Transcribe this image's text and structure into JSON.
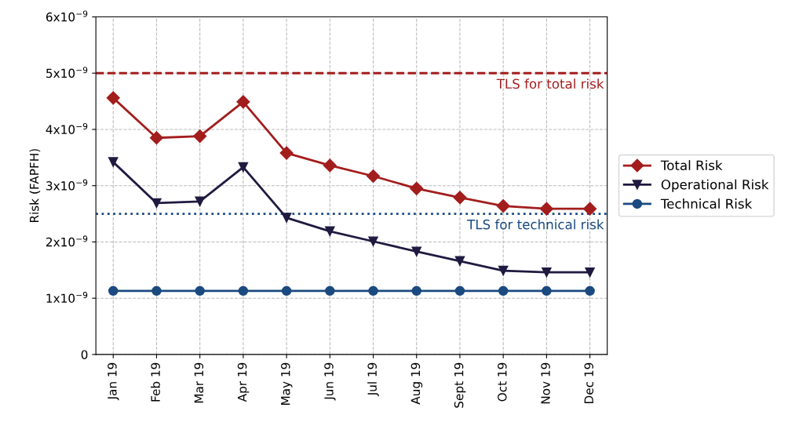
{
  "chart_data": {
    "type": "line",
    "ylabel": "Risk (FAPFH)",
    "categories": [
      "Jan 19",
      "Feb 19",
      "Mar 19",
      "Apr 19",
      "May 19",
      "Jun 19",
      "Jul 19",
      "Aug 19",
      "Sept 19",
      "Oct 19",
      "Nov 19",
      "Dec 19"
    ],
    "series": [
      {
        "name": "Total Risk",
        "color": "#a31d1d",
        "marker": "diamond",
        "values": [
          4.56e-09,
          3.85e-09,
          3.88e-09,
          4.49e-09,
          3.58e-09,
          3.36e-09,
          3.17e-09,
          2.95e-09,
          2.79e-09,
          2.64e-09,
          2.59e-09,
          2.59e-09
        ]
      },
      {
        "name": "Operational Risk",
        "color": "#1f1a40",
        "marker": "triangle",
        "values": [
          3.42e-09,
          2.69e-09,
          2.72e-09,
          3.33e-09,
          2.43e-09,
          2.19e-09,
          2.01e-09,
          1.83e-09,
          1.66e-09,
          1.49e-09,
          1.46e-09,
          1.46e-09
        ]
      },
      {
        "name": "Technical Risk",
        "color": "#1a4a80",
        "marker": "circle",
        "values": [
          1.13e-09,
          1.13e-09,
          1.13e-09,
          1.13e-09,
          1.13e-09,
          1.13e-09,
          1.13e-09,
          1.13e-09,
          1.13e-09,
          1.13e-09,
          1.13e-09,
          1.13e-09
        ]
      }
    ],
    "ylim": [
      0,
      6e-09
    ],
    "yticks": [
      0,
      {
        "value": 1e-09,
        "label": "1x10$^{−9}$"
      },
      {
        "value": 2e-09,
        "label": "2x10$^{−9}$"
      },
      {
        "value": 3e-09,
        "label": "3x10$^{−9}$"
      },
      {
        "value": 4e-09,
        "label": "4x10$^{−9}$"
      },
      {
        "value": 5e-09,
        "label": "5x10$^{−9}$"
      },
      {
        "value": 6e-09,
        "label": "6x10$^{−9}$"
      }
    ],
    "ref_lines": [
      {
        "axis": "y",
        "value": 5e-09,
        "label": "TLS for total risk",
        "color": "#a31d1d",
        "line_style": "dashed"
      },
      {
        "axis": "y",
        "value": 2.5e-09,
        "label": "TLS for technical risk",
        "color": "#1a4a80",
        "line_style": "dotted"
      }
    ],
    "grid": true,
    "legend": "right",
    "line_style": "solid"
  }
}
